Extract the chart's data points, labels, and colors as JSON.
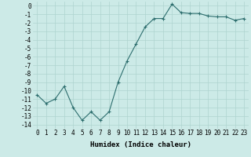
{
  "title": "",
  "xlabel": "Humidex (Indice chaleur)",
  "ylabel": "",
  "x": [
    0,
    1,
    2,
    3,
    4,
    5,
    6,
    7,
    8,
    9,
    10,
    11,
    12,
    13,
    14,
    15,
    16,
    17,
    18,
    19,
    20,
    21,
    22,
    23
  ],
  "y": [
    -10.5,
    -11.5,
    -11.0,
    -9.5,
    -12.0,
    -13.5,
    -12.5,
    -13.5,
    -12.5,
    -9.0,
    -6.5,
    -4.5,
    -2.5,
    -1.5,
    -1.5,
    0.2,
    -0.8,
    -0.9,
    -0.9,
    -1.2,
    -1.3,
    -1.3,
    -1.7,
    -1.5
  ],
  "line_color": "#2d6e6e",
  "marker": "+",
  "marker_size": 3,
  "marker_linewidth": 0.8,
  "line_width": 0.8,
  "bg_color": "#cceae7",
  "grid_color": "#aed4d0",
  "tick_label_fontsize": 5.5,
  "xlabel_fontsize": 6.5,
  "ylim": [
    -14.5,
    0.5
  ],
  "xlim": [
    -0.5,
    23.5
  ],
  "yticks": [
    0,
    -1,
    -2,
    -3,
    -4,
    -5,
    -6,
    -7,
    -8,
    -9,
    -10,
    -11,
    -12,
    -13,
    -14
  ],
  "xticks": [
    0,
    1,
    2,
    3,
    4,
    5,
    6,
    7,
    8,
    9,
    10,
    11,
    12,
    13,
    14,
    15,
    16,
    17,
    18,
    19,
    20,
    21,
    22,
    23
  ]
}
